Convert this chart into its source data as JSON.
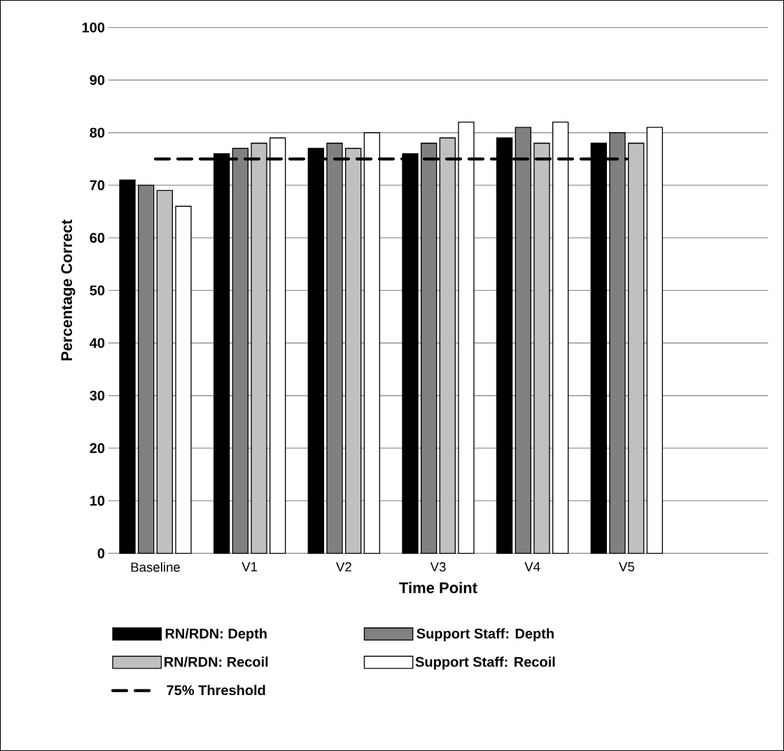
{
  "chart_data": {
    "type": "bar",
    "xlabel": "Time Point",
    "ylabel": "Percentage Correct",
    "categories": [
      "Baseline",
      "V1",
      "V2",
      "V3",
      "V4",
      "V5",
      null
    ],
    "series": [
      {
        "name": "RN/RDN: Depth",
        "color": "#000000",
        "values": [
          71,
          76,
          77,
          76,
          79,
          78,
          null
        ]
      },
      {
        "name": "Support Staff: Depth",
        "color": "#808080",
        "values": [
          70,
          77,
          78,
          78,
          81,
          80,
          null
        ]
      },
      {
        "name": "RN/RDN: Recoil",
        "color": "#c0c0c0",
        "values": [
          69,
          78,
          77,
          79,
          78,
          78,
          null
        ]
      },
      {
        "name": "Support Staff: Recoil",
        "color": "#ffffff",
        "values": [
          66,
          79,
          80,
          82,
          82,
          81,
          null
        ]
      },
      {
        "name": "75% Threshold",
        "type": "line",
        "line_style": "dashed",
        "color": "#000000",
        "values": [
          75,
          75,
          75,
          75,
          75,
          75,
          null
        ]
      }
    ],
    "ylim": [
      0,
      100
    ],
    "yticks": [
      0,
      10,
      20,
      30,
      40,
      50,
      60,
      70,
      80,
      90,
      100
    ],
    "grid": "y",
    "legend": "bottom"
  }
}
